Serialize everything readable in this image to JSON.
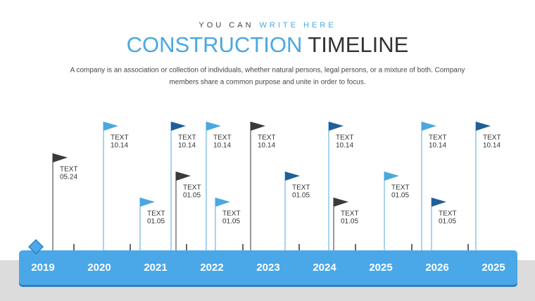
{
  "header": {
    "kicker": {
      "lead": "YOU CAN",
      "accent": "WRITE HERE"
    },
    "title": {
      "accent": "CONSTRUCTION",
      "rest": "TIMELINE"
    },
    "description": [
      "A company is an association or collection of individuals, whether natural persons, legal persons, or a mixture of both. Company",
      "members share a common purpose and unite in order to focus."
    ]
  },
  "timeline": {
    "years": [
      "2019",
      "2020",
      "2021",
      "2022",
      "2023",
      "2024",
      "2025",
      "2026",
      "2025"
    ],
    "flags": [
      {
        "label": "TEXT",
        "date": "05.24"
      },
      {
        "label": "TEXT",
        "date": "10.14"
      },
      {
        "label": "TEXT",
        "date": "01.05"
      },
      {
        "label": "TEXT",
        "date": "10.14"
      },
      {
        "label": "TEXT",
        "date": "01.05"
      },
      {
        "label": "TEXT",
        "date": "10.14"
      },
      {
        "label": "TEXT",
        "date": "01.05"
      },
      {
        "label": "TEXT",
        "date": "10.14"
      },
      {
        "label": "TEXT",
        "date": "01.05"
      },
      {
        "label": "TEXT",
        "date": "10.14"
      },
      {
        "label": "TEXT",
        "date": "01.05"
      },
      {
        "label": "TEXT",
        "date": "01.05"
      },
      {
        "label": "TEXT",
        "date": "10.14"
      },
      {
        "label": "TEXT",
        "date": "01.05"
      },
      {
        "label": "TEXT",
        "date": "10.14"
      }
    ]
  }
}
